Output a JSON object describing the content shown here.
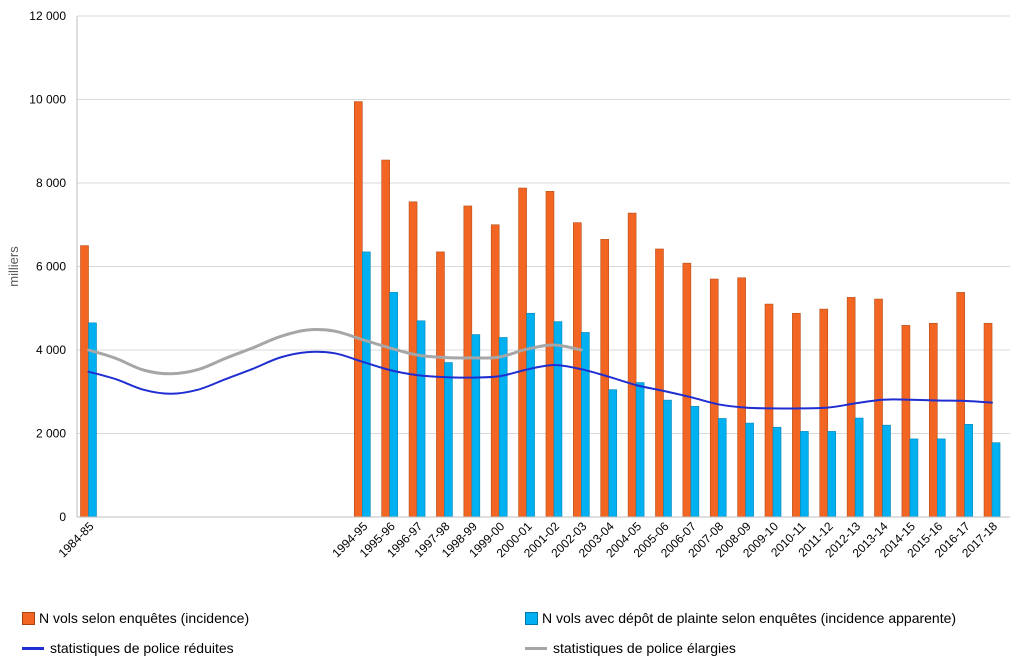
{
  "chart_data": {
    "type": "bar",
    "ylabel": "milliers",
    "ylim": [
      0,
      12000
    ],
    "yticks": [
      0,
      2000,
      4000,
      6000,
      8000,
      10000,
      12000
    ],
    "ytick_labels": [
      "0",
      "2 000",
      "4 000",
      "6 000",
      "8 000",
      "10 000",
      "12 000"
    ],
    "grid": true,
    "legend_position": "bottom",
    "years": [
      1984,
      1994,
      1995,
      1996,
      1997,
      1998,
      1999,
      2000,
      2001,
      2002,
      2003,
      2004,
      2005,
      2006,
      2007,
      2008,
      2009,
      2010,
      2011,
      2012,
      2013,
      2014,
      2015,
      2016,
      2017
    ],
    "categories": [
      "1984-85",
      "1994-95",
      "1995-96",
      "1996-97",
      "1997-98",
      "1998-99",
      "1999-00",
      "2000-01",
      "2001-02",
      "2002-03",
      "2003-04",
      "2004-05",
      "2005-06",
      "2006-07",
      "2007-08",
      "2008-09",
      "2009-10",
      "2010-11",
      "2011-12",
      "2012-13",
      "2013-14",
      "2014-15",
      "2015-16",
      "2016-17",
      "2017-18"
    ],
    "series": [
      {
        "name": "N vols  selon enquêtes (incidence)",
        "kind": "bar",
        "color": "#f26522",
        "values": [
          6500,
          9950,
          8550,
          7550,
          6350,
          7450,
          7000,
          7880,
          7800,
          7050,
          6650,
          7280,
          6420,
          6080,
          5700,
          5730,
          5100,
          4880,
          4980,
          5260,
          5220,
          4590,
          4640,
          5380,
          4640
        ]
      },
      {
        "name": "N vols  avec dépôt de plainte selon enquêtes (incidence apparente)",
        "kind": "bar",
        "color": "#00b0f0",
        "values": [
          4650,
          6350,
          5380,
          4700,
          3700,
          4370,
          4300,
          4880,
          4680,
          4420,
          3050,
          3220,
          2800,
          2650,
          2360,
          2250,
          2150,
          2050,
          2050,
          2370,
          2200,
          1870,
          1870,
          2220,
          1780
        ]
      },
      {
        "name": "statistiques de police réduites",
        "kind": "line",
        "color": "#1f2ed1",
        "x": [
          1984,
          1985,
          1986,
          1987,
          1988,
          1989,
          1990,
          1991,
          1992,
          1993,
          1994,
          1995,
          1996,
          1997,
          1998,
          1999,
          2000,
          2001,
          2002,
          2003,
          2004,
          2005,
          2006,
          2007,
          2008,
          2009,
          2010,
          2011,
          2012,
          2013,
          2014,
          2015,
          2016,
          2017
        ],
        "values": [
          3480,
          3300,
          3050,
          2950,
          3050,
          3300,
          3550,
          3820,
          3950,
          3920,
          3720,
          3520,
          3400,
          3350,
          3340,
          3370,
          3530,
          3640,
          3540,
          3360,
          3160,
          3020,
          2870,
          2700,
          2620,
          2600,
          2600,
          2620,
          2720,
          2810,
          2810,
          2790,
          2780,
          2740
        ]
      },
      {
        "name": "statistiques de police élargies",
        "kind": "line",
        "color": "#a6a6a6",
        "x": [
          1984,
          1985,
          1986,
          1987,
          1988,
          1989,
          1990,
          1991,
          1992,
          1993,
          1994,
          1995,
          1996,
          1997,
          1998,
          1999,
          2000,
          2001,
          2002
        ],
        "values": [
          4000,
          3800,
          3520,
          3430,
          3530,
          3800,
          4050,
          4320,
          4480,
          4450,
          4250,
          4050,
          3880,
          3820,
          3810,
          3830,
          4020,
          4120,
          4000
        ]
      }
    ]
  }
}
